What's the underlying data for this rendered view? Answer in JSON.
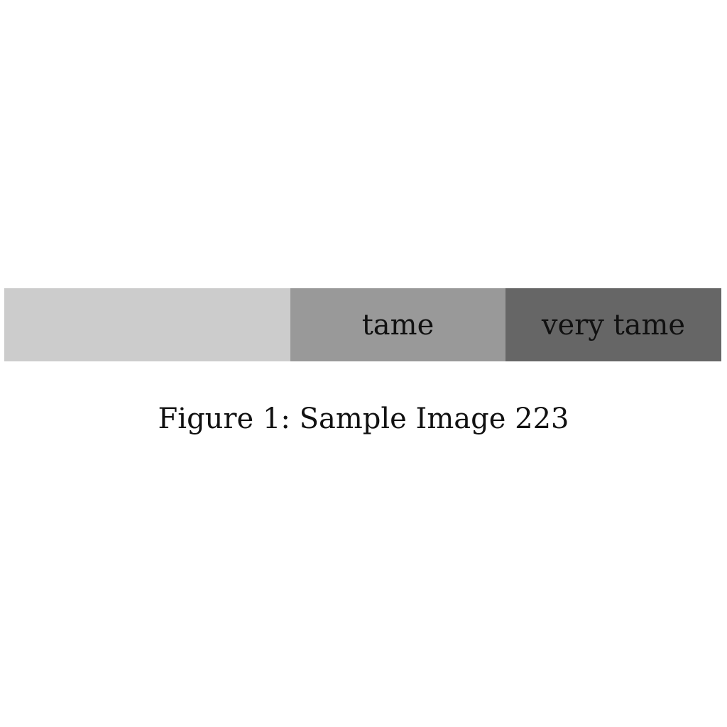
{
  "figure": {
    "segments": [
      {
        "label": "",
        "color": "#cccccc"
      },
      {
        "label": "tame",
        "color": "#999999"
      },
      {
        "label": "very tame",
        "color": "#666666"
      }
    ],
    "caption": "Figure 1: Sample Image 223"
  }
}
